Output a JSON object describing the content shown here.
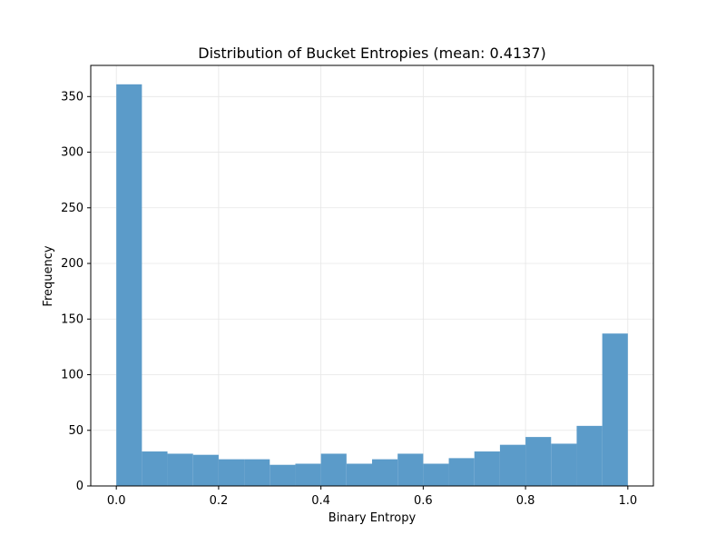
{
  "chart_data": {
    "type": "bar",
    "title": "Distribution of Bucket Entropies (mean: 0.4137)",
    "xlabel": "Binary Entropy",
    "ylabel": "Frequency",
    "xlim": [
      -0.05,
      1.05
    ],
    "ylim": [
      0,
      378
    ],
    "grid": true,
    "bar_color": "#5b9bc9",
    "bins": [
      {
        "start": 0.0,
        "end": 0.05,
        "value": 361
      },
      {
        "start": 0.05,
        "end": 0.1,
        "value": 31
      },
      {
        "start": 0.1,
        "end": 0.15,
        "value": 29
      },
      {
        "start": 0.15,
        "end": 0.2,
        "value": 28
      },
      {
        "start": 0.2,
        "end": 0.25,
        "value": 24
      },
      {
        "start": 0.25,
        "end": 0.3,
        "value": 24
      },
      {
        "start": 0.3,
        "end": 0.35,
        "value": 19
      },
      {
        "start": 0.35,
        "end": 0.4,
        "value": 20
      },
      {
        "start": 0.4,
        "end": 0.45,
        "value": 29
      },
      {
        "start": 0.45,
        "end": 0.5,
        "value": 20
      },
      {
        "start": 0.5,
        "end": 0.55,
        "value": 24
      },
      {
        "start": 0.55,
        "end": 0.6,
        "value": 29
      },
      {
        "start": 0.6,
        "end": 0.65,
        "value": 20
      },
      {
        "start": 0.65,
        "end": 0.7,
        "value": 25
      },
      {
        "start": 0.7,
        "end": 0.75,
        "value": 31
      },
      {
        "start": 0.75,
        "end": 0.8,
        "value": 37
      },
      {
        "start": 0.8,
        "end": 0.85,
        "value": 44
      },
      {
        "start": 0.85,
        "end": 0.9,
        "value": 38
      },
      {
        "start": 0.9,
        "end": 0.95,
        "value": 54
      },
      {
        "start": 0.95,
        "end": 1.0,
        "value": 137
      }
    ],
    "x_ticks": [
      {
        "value": 0.0,
        "label": "0.0"
      },
      {
        "value": 0.2,
        "label": "0.2"
      },
      {
        "value": 0.4,
        "label": "0.4"
      },
      {
        "value": 0.6,
        "label": "0.6"
      },
      {
        "value": 0.8,
        "label": "0.8"
      },
      {
        "value": 1.0,
        "label": "1.0"
      }
    ],
    "y_ticks": [
      {
        "value": 0,
        "label": "0"
      },
      {
        "value": 50,
        "label": "50"
      },
      {
        "value": 100,
        "label": "100"
      },
      {
        "value": 150,
        "label": "150"
      },
      {
        "value": 200,
        "label": "200"
      },
      {
        "value": 250,
        "label": "250"
      },
      {
        "value": 300,
        "label": "300"
      },
      {
        "value": 350,
        "label": "350"
      }
    ]
  }
}
